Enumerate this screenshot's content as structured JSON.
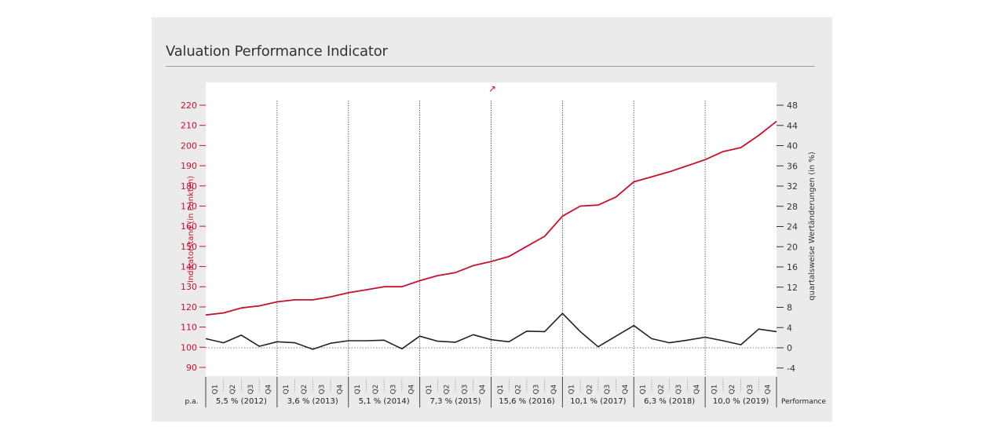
{
  "title": "Valuation Performance Indicator",
  "arrow_glyph": "↗",
  "colors": {
    "index_line": "#c8102e",
    "change_line": "#222222",
    "left_axis": "#c8102e",
    "right_axis": "#333333"
  },
  "chart_data": {
    "type": "line",
    "ylabel_left": "Indikatorstand (in Punkten)",
    "ylabel_right": "quartalsweise Wertänderungen (in %)",
    "left_axis": {
      "range": [
        90,
        220
      ],
      "ticks": [
        90,
        100,
        110,
        120,
        130,
        140,
        150,
        160,
        170,
        180,
        190,
        200,
        210,
        220
      ]
    },
    "right_axis": {
      "range": [
        -4,
        48
      ],
      "ticks": [
        -4,
        0,
        4,
        8,
        12,
        16,
        20,
        24,
        28,
        32,
        36,
        40,
        44,
        48
      ]
    },
    "quarter_labels": [
      "Q1",
      "Q2",
      "Q3",
      "Q4"
    ],
    "years": [
      {
        "year": "2012",
        "label": "5,5 % (2012)"
      },
      {
        "year": "2013",
        "label": "3,6 % (2013)"
      },
      {
        "year": "2014",
        "label": "5,1 % (2014)"
      },
      {
        "year": "2015",
        "label": "7,3 % (2015)"
      },
      {
        "year": "2016",
        "label": "15,6 % (2016)"
      },
      {
        "year": "2017",
        "label": "10,1 % (2017)"
      },
      {
        "year": "2018",
        "label": "6,3 % (2018)"
      },
      {
        "year": "2019",
        "label": "10,0 % (2019)"
      }
    ],
    "pa_label": "p.a.",
    "performance_label": "Performance",
    "series": [
      {
        "axis": "left",
        "values": [
          116,
          117,
          119.5,
          120.5,
          122.5,
          123.5,
          123.5,
          125,
          127,
          128.5,
          130,
          130,
          133,
          135.5,
          137,
          140.5,
          142.5,
          145,
          150,
          155,
          165,
          170,
          170.5,
          174.5,
          182,
          184.5,
          187,
          190,
          193,
          197,
          199,
          205,
          212
        ]
      },
      {
        "axis": "right",
        "values": [
          1.8,
          1.0,
          2.5,
          0.3,
          1.2,
          1.0,
          -0.3,
          0.9,
          1.4,
          1.4,
          1.5,
          -0.2,
          2.3,
          1.3,
          1.1,
          2.6,
          1.6,
          1.2,
          3.3,
          3.2,
          6.8,
          3.2,
          0.2,
          2.3,
          4.4,
          1.8,
          1.0,
          1.5,
          2.1,
          1.4,
          0.6,
          3.7,
          3.2
        ]
      }
    ]
  }
}
